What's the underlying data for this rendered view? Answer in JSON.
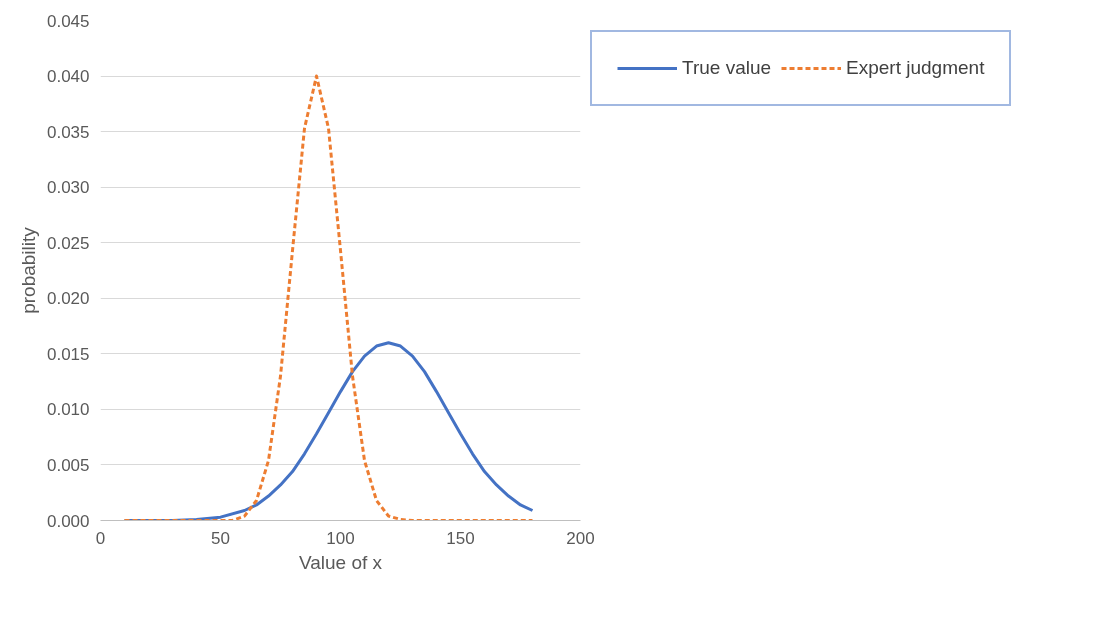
{
  "chart_data": {
    "type": "line",
    "xlabel": "Value of x",
    "ylabel": "probability",
    "xlim": [
      0,
      200
    ],
    "xticks": [
      0,
      50,
      100,
      150,
      200
    ],
    "ylim": [
      0,
      0.045
    ],
    "yticks": [
      {
        "value": 0,
        "label": "0.000"
      },
      {
        "value": 0.005,
        "label": "0.005"
      },
      {
        "value": 0.01,
        "label": "0.010"
      },
      {
        "value": 0.015,
        "label": "0.015"
      },
      {
        "value": 0.02,
        "label": "0.020"
      },
      {
        "value": 0.025,
        "label": "0.025"
      },
      {
        "value": 0.03,
        "label": "0.030"
      },
      {
        "value": 0.035,
        "label": "0.035"
      },
      {
        "value": 0.04,
        "label": "0.040"
      },
      {
        "value": 0.045,
        "label": "0.045"
      }
    ],
    "grid": "y",
    "legend": "top right",
    "marker": "none",
    "series": [
      {
        "name": "True value",
        "color": "#4472c4",
        "line_style": "solid",
        "x": [
          10,
          20,
          30,
          40,
          50,
          60,
          65,
          70,
          75,
          80,
          85,
          90,
          95,
          100,
          105,
          110,
          115,
          120,
          125,
          130,
          135,
          140,
          145,
          150,
          155,
          160,
          165,
          170,
          175,
          180
        ],
        "values": [
          0,
          0,
          0,
          0.0001,
          0.0003,
          0.0009,
          0.0014,
          0.0022,
          0.0032,
          0.0044,
          0.006,
          0.0078,
          0.0097,
          0.0116,
          0.0134,
          0.0148,
          0.0157,
          0.016,
          0.0157,
          0.0148,
          0.0134,
          0.0116,
          0.0097,
          0.0078,
          0.006,
          0.0044,
          0.0032,
          0.0022,
          0.0014,
          0.0009
        ]
      },
      {
        "name": "Expert judgment",
        "color": "#ed7d31",
        "line_style": "dashed",
        "x": [
          10,
          20,
          30,
          40,
          50,
          55,
          60,
          65,
          70,
          75,
          80,
          85,
          90,
          95,
          100,
          105,
          110,
          115,
          120,
          125,
          130,
          140,
          150,
          160,
          170,
          180
        ],
        "values": [
          0,
          0,
          0,
          0,
          0,
          0,
          0.0004,
          0.0018,
          0.0054,
          0.013,
          0.0243,
          0.0353,
          0.04,
          0.0353,
          0.0243,
          0.013,
          0.0054,
          0.0018,
          0.0004,
          0.0001,
          0,
          0,
          0,
          0,
          0,
          0
        ]
      }
    ]
  }
}
